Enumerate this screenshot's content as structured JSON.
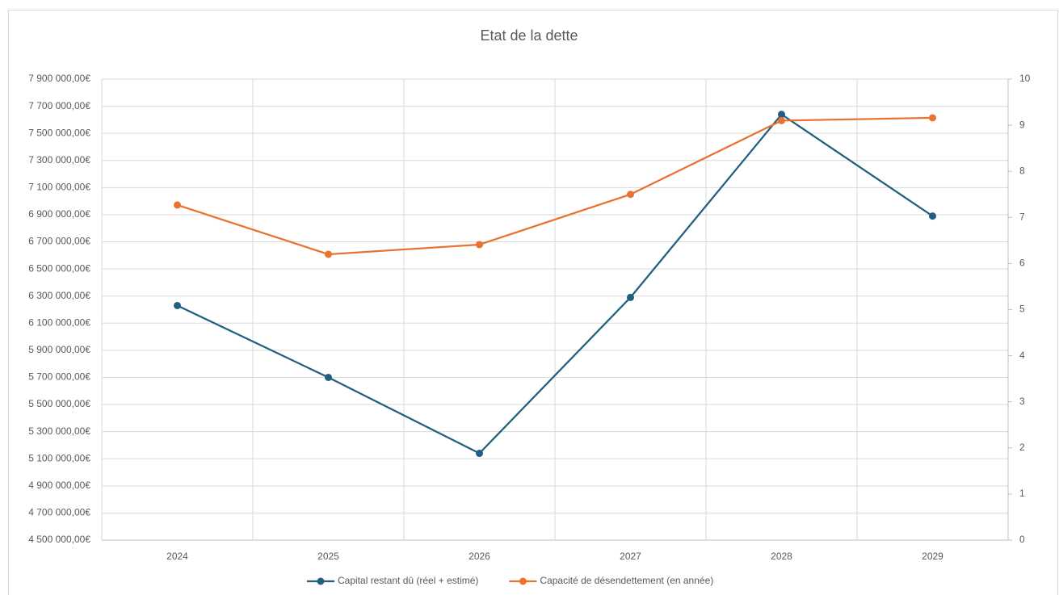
{
  "chart_data": {
    "type": "line",
    "title": "Etat de la dette",
    "categories": [
      "2024",
      "2025",
      "2026",
      "2027",
      "2028",
      "2029"
    ],
    "series": [
      {
        "name": "Capital restant dû (réel + estimé)",
        "color": "#1f5f80",
        "axis": "y",
        "values": [
          6230000,
          5700000,
          5140000,
          6290000,
          7640000,
          6890000
        ]
      },
      {
        "name": "Capacité de désendettement (en année)",
        "color": "#e97132",
        "axis": "y2",
        "values": [
          7.27,
          6.2,
          6.41,
          7.5,
          9.1,
          9.16
        ]
      }
    ],
    "ylim": [
      4500000,
      7900000
    ],
    "yticks": [
      {
        "value": 4500000,
        "label": "4 500 000,00€"
      },
      {
        "value": 4700000,
        "label": "4 700 000,00€"
      },
      {
        "value": 4900000,
        "label": "4 900 000,00€"
      },
      {
        "value": 5100000,
        "label": "5 100 000,00€"
      },
      {
        "value": 5300000,
        "label": "5 300 000,00€"
      },
      {
        "value": 5500000,
        "label": "5 500 000,00€"
      },
      {
        "value": 5700000,
        "label": "5 700 000,00€"
      },
      {
        "value": 5900000,
        "label": "5 900 000,00€"
      },
      {
        "value": 6100000,
        "label": "6 100 000,00€"
      },
      {
        "value": 6300000,
        "label": "6 300 000,00€"
      },
      {
        "value": 6500000,
        "label": "6 500 000,00€"
      },
      {
        "value": 6700000,
        "label": "6 700 000,00€"
      },
      {
        "value": 6900000,
        "label": "6 900 000,00€"
      },
      {
        "value": 7100000,
        "label": "7 100 000,00€"
      },
      {
        "value": 7300000,
        "label": "7 300 000,00€"
      },
      {
        "value": 7500000,
        "label": "7 500 000,00€"
      },
      {
        "value": 7700000,
        "label": "7 700 000,00€"
      },
      {
        "value": 7900000,
        "label": "7 900 000,00€"
      }
    ],
    "y2lim": [
      0,
      10
    ],
    "y2ticks": [
      0,
      1,
      2,
      3,
      4,
      5,
      6,
      7,
      8,
      9,
      10
    ],
    "grid": true,
    "legend": "bottom"
  }
}
